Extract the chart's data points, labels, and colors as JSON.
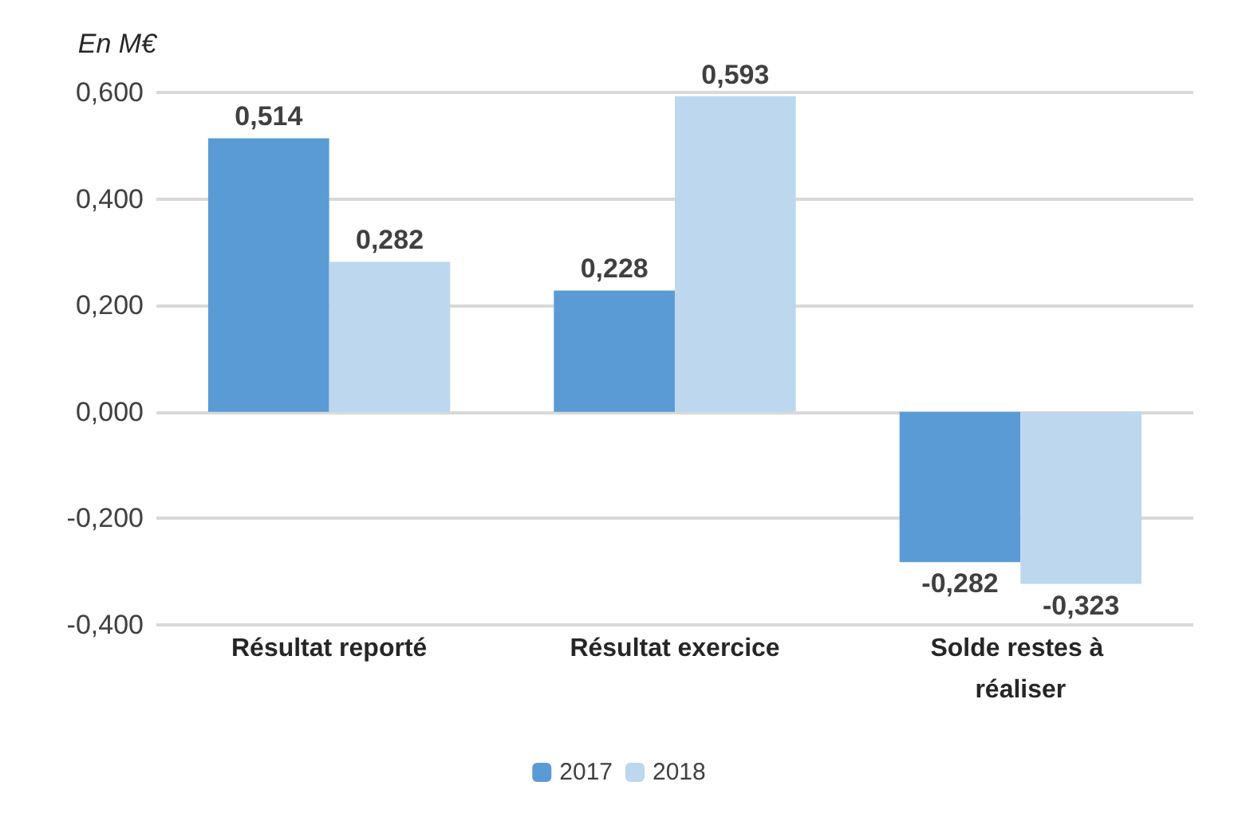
{
  "chart_data": {
    "type": "bar",
    "ylabel": "En M€",
    "categories": [
      "Résultat reporté",
      "Résultat exercice",
      "Solde restes à réaliser"
    ],
    "series": [
      {
        "name": "2017",
        "color": "#5b9bd5",
        "values": [
          0.514,
          0.228,
          -0.282
        ],
        "value_labels": [
          "0,514",
          "0,228",
          "-0,282"
        ]
      },
      {
        "name": "2018",
        "color": "#bdd7ee",
        "values": [
          0.282,
          0.593,
          -0.323
        ],
        "value_labels": [
          "0,282",
          "0,593",
          "-0,323"
        ]
      }
    ],
    "ylim": [
      -0.4,
      0.6
    ],
    "yticks": [
      {
        "value": -0.4,
        "label": "-0,400"
      },
      {
        "value": -0.2,
        "label": "-0,200"
      },
      {
        "value": 0,
        "label": "0,000"
      },
      {
        "value": 0.2,
        "label": "0,200"
      },
      {
        "value": 0.4,
        "label": "0,400"
      },
      {
        "value": 0.6,
        "label": "0,600"
      }
    ],
    "grid": "y",
    "legend": "bottom"
  }
}
